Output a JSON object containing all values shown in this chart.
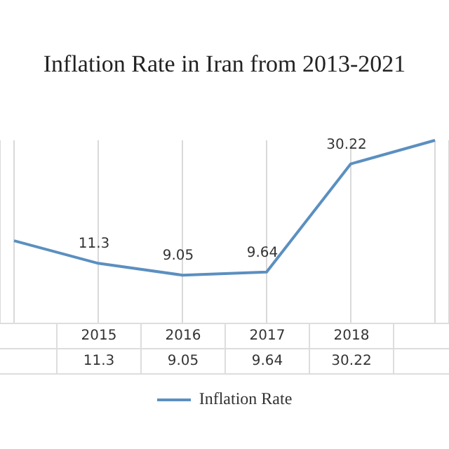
{
  "chart_data": {
    "type": "line",
    "title": "Inflation Rate in Iran from 2013-2021",
    "categories": [
      null,
      "2015",
      "2016",
      "2017",
      "2018",
      null
    ],
    "series": [
      {
        "name": "Inflation Rate",
        "color": "#5b8fc0",
        "values": [
          15.6,
          11.3,
          9.05,
          9.64,
          30.22,
          34.7
        ],
        "value_labels": [
          null,
          "11.3",
          "9.05",
          "9.64",
          "30.22",
          null
        ]
      }
    ],
    "grid": "x",
    "legend": "bottom",
    "marker": "none",
    "line_style": "solid"
  }
}
